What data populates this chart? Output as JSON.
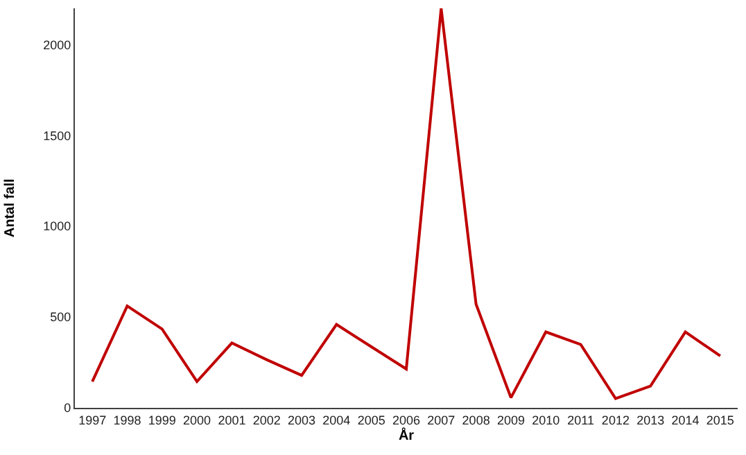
{
  "chart_data": {
    "type": "line",
    "xlabel": "År",
    "ylabel": "Antal fall",
    "categories": [
      "1997",
      "1998",
      "1999",
      "2000",
      "2001",
      "2002",
      "2003",
      "2004",
      "2005",
      "2006",
      "2007",
      "2008",
      "2009",
      "2010",
      "2011",
      "2012",
      "2013",
      "2014",
      "2015"
    ],
    "series": [
      {
        "color": "#c00000",
        "values": [
          145,
          561,
          434,
          145,
          357,
          265,
          179,
          459,
          336,
          214,
          2199,
          571,
          56,
          418,
          349,
          51,
          120,
          418,
          286
        ]
      }
    ],
    "ylim": [
      0,
      2200
    ],
    "yticks": [
      0,
      500,
      1000,
      1500,
      2000
    ],
    "marker": "none",
    "line_style": "solid"
  }
}
